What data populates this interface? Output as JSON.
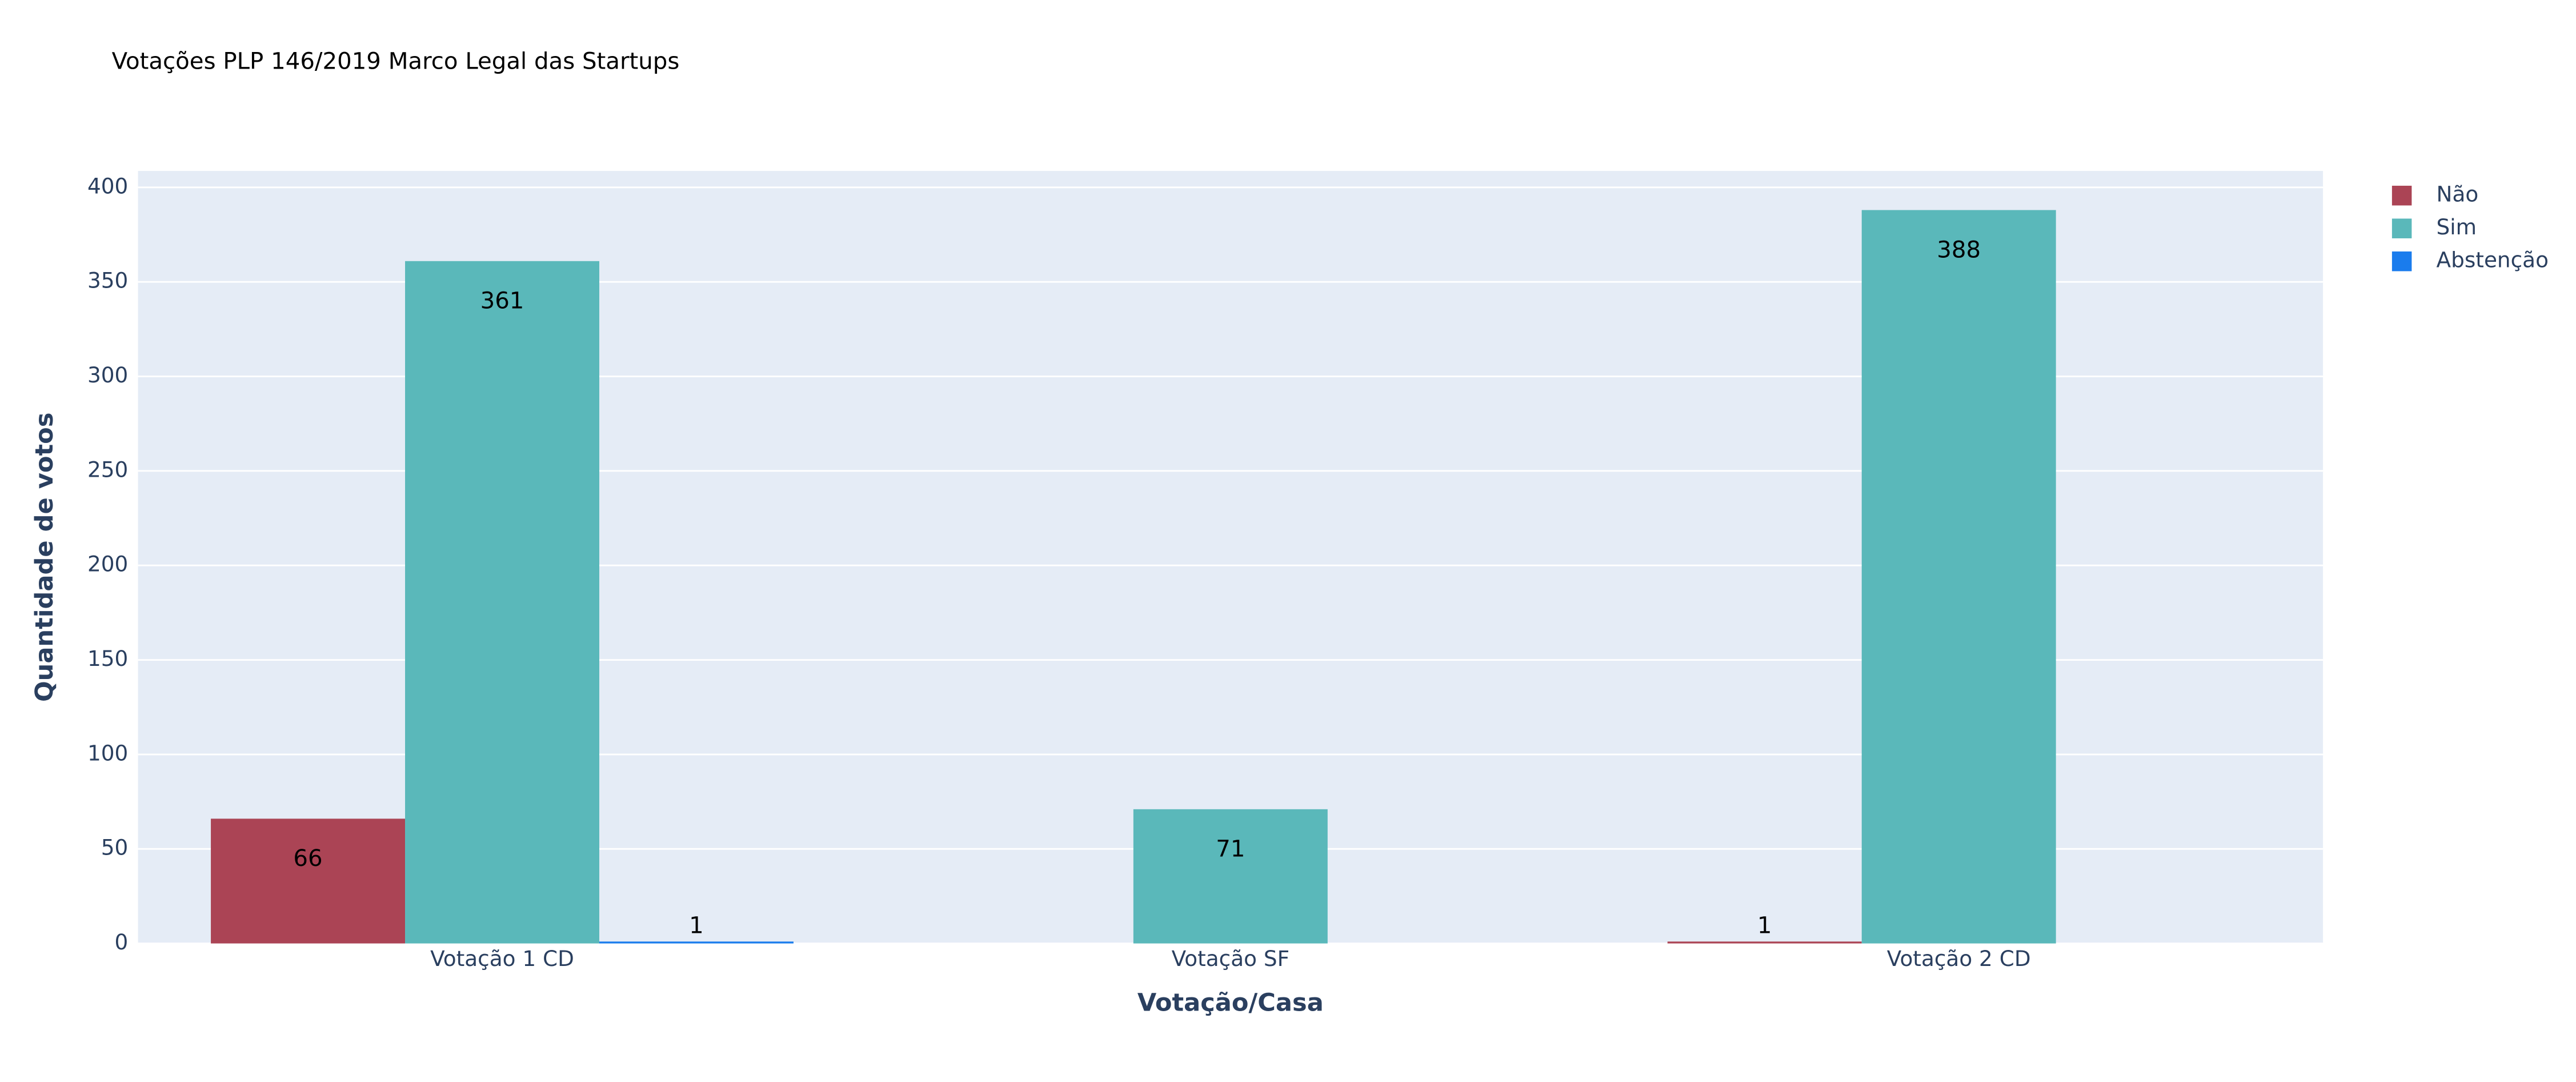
{
  "chart_data": {
    "type": "bar",
    "title": "Votações PLP 146/2019 Marco Legal das Startups",
    "x_label": "Votação/Casa",
    "y_label": "Quantidade de votos",
    "categories": [
      "Votação 1 CD",
      "Votação SF",
      "Votação 2 CD"
    ],
    "series": [
      {
        "name": "Não",
        "color": "#ab4455",
        "values": [
          66,
          null,
          1
        ]
      },
      {
        "name": "Sim",
        "color": "#5ab8ba",
        "values": [
          361,
          71,
          388
        ]
      },
      {
        "name": "Abstenção",
        "color": "#1a7ced",
        "values": [
          1,
          null,
          null
        ]
      }
    ],
    "ylim": [
      0,
      408.7
    ],
    "yticks": [
      0,
      50,
      100,
      150,
      200,
      250,
      300,
      350,
      400
    ],
    "grid": true,
    "legend": "top-right"
  }
}
